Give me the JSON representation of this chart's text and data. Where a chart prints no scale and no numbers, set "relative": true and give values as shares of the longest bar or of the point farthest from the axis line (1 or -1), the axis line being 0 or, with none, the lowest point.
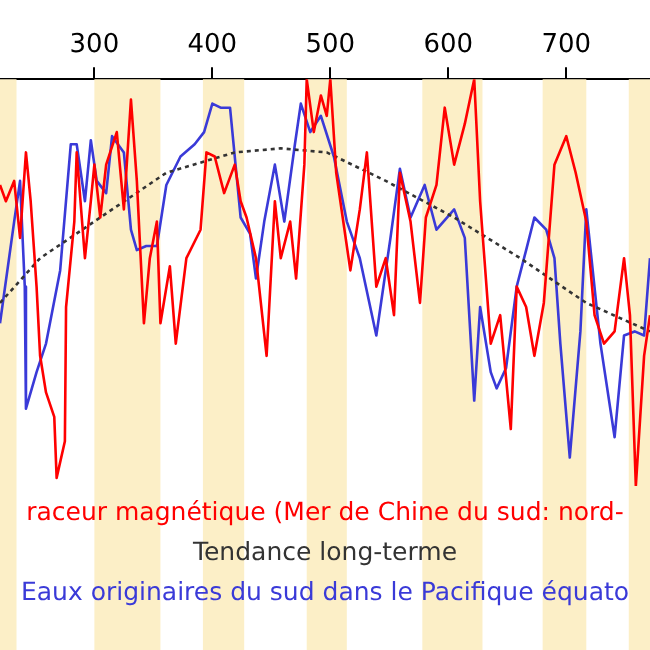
{
  "chart_data": {
    "type": "line",
    "relative": true,
    "xlim": [
      220,
      771
    ],
    "xticks": [
      300,
      400,
      500,
      600,
      700
    ],
    "grid": false,
    "legend": "bottom",
    "marker": "none",
    "tick_labels": "x",
    "bands": [
      {
        "axis": "x",
        "from": 220,
        "to": 234,
        "color": "#fcefc7"
      },
      {
        "axis": "x",
        "from": 300,
        "to": 356,
        "color": "#fcefc7"
      },
      {
        "axis": "x",
        "from": 392,
        "to": 427,
        "color": "#fcefc7"
      },
      {
        "axis": "x",
        "from": 480,
        "to": 514,
        "color": "#fcefc7"
      },
      {
        "axis": "x",
        "from": 578,
        "to": 629,
        "color": "#fcefc7"
      },
      {
        "axis": "x",
        "from": 680,
        "to": 717,
        "color": "#fcefc7"
      },
      {
        "axis": "x",
        "from": 753,
        "to": 771,
        "color": "#fcefc7"
      }
    ],
    "series": [
      {
        "name": "raceur magnétique (Mer de Chine du sud: nord-",
        "color": "#ff0000",
        "line_style": "solid",
        "x": [
          220,
          225,
          232,
          237,
          242,
          246,
          251,
          254,
          259,
          266,
          268,
          275,
          276,
          283,
          285,
          292,
          297,
          300,
          305,
          310,
          319,
          325,
          331,
          336,
          342,
          347,
          353,
          356,
          364,
          369,
          378,
          390,
          395,
          402,
          410,
          419,
          424,
          429,
          437,
          446,
          453,
          458,
          466,
          471,
          478,
          480,
          486,
          492,
          497,
          500,
          505,
          517,
          525,
          531,
          539,
          547,
          554,
          559,
          568,
          576,
          581,
          590,
          597,
          605,
          614,
          622,
          627,
          636,
          644,
          653,
          658,
          666,
          673,
          681,
          690,
          700,
          708,
          717,
          724,
          732,
          741,
          749,
          754,
          759,
          766,
          771
        ],
        "values": [
          0.74,
          0.7,
          0.75,
          0.61,
          0.82,
          0.7,
          0.49,
          0.32,
          0.23,
          0.17,
          0.02,
          0.11,
          0.44,
          0.65,
          0.82,
          0.56,
          0.7,
          0.79,
          0.66,
          0.79,
          0.87,
          0.68,
          0.95,
          0.75,
          0.4,
          0.56,
          0.65,
          0.4,
          0.54,
          0.35,
          0.56,
          0.63,
          0.82,
          0.81,
          0.72,
          0.79,
          0.7,
          0.66,
          0.56,
          0.32,
          0.7,
          0.56,
          0.65,
          0.51,
          0.79,
          1,
          0.87,
          0.96,
          0.91,
          1,
          0.77,
          0.53,
          0.68,
          0.82,
          0.49,
          0.56,
          0.42,
          0.77,
          0.65,
          0.45,
          0.66,
          0.74,
          0.93,
          0.79,
          0.89,
          1,
          0.7,
          0.35,
          0.42,
          0.14,
          0.49,
          0.44,
          0.32,
          0.45,
          0.79,
          0.86,
          0.77,
          0.65,
          0.42,
          0.35,
          0.38,
          0.56,
          0.42,
          0,
          0.32,
          0.42
        ]
      },
      {
        "name": "Tendance long-terme",
        "color": "#333333",
        "line_style": "dotted",
        "x": [
          220,
          254,
          305,
          361,
          419,
          458,
          497,
          547,
          605,
          661,
          717,
          771
        ],
        "values": [
          0.45,
          0.56,
          0.66,
          0.77,
          0.82,
          0.83,
          0.82,
          0.75,
          0.66,
          0.56,
          0.45,
          0.38
        ]
      },
      {
        "name": "Eaux originaires du sud dans le Pacifique équato",
        "color": "#3a3ad8",
        "line_style": "solid",
        "x": [
          220,
          232,
          237,
          241,
          242,
          251,
          259,
          271,
          280,
          285,
          292,
          297,
          302,
          310,
          315,
          325,
          331,
          336,
          344,
          353,
          361,
          373,
          385,
          393,
          400,
          407,
          415,
          424,
          432,
          437,
          444,
          453,
          461,
          470,
          475,
          483,
          492,
          503,
          514,
          525,
          539,
          551,
          559,
          568,
          580,
          590,
          605,
          614,
          622,
          627,
          636,
          641,
          649,
          658,
          666,
          673,
          683,
          690,
          695,
          703,
          712,
          717,
          729,
          741,
          749,
          758,
          766,
          771
        ],
        "values": [
          0.4,
          0.65,
          0.75,
          0.49,
          0.19,
          0.28,
          0.35,
          0.53,
          0.84,
          0.84,
          0.7,
          0.85,
          0.75,
          0.72,
          0.86,
          0.82,
          0.63,
          0.58,
          0.59,
          0.59,
          0.74,
          0.81,
          0.84,
          0.87,
          0.94,
          0.93,
          0.93,
          0.66,
          0.62,
          0.51,
          0.65,
          0.79,
          0.65,
          0.84,
          0.94,
          0.87,
          0.91,
          0.81,
          0.65,
          0.56,
          0.37,
          0.61,
          0.78,
          0.66,
          0.74,
          0.63,
          0.68,
          0.61,
          0.21,
          0.44,
          0.28,
          0.24,
          0.29,
          0.49,
          0.58,
          0.66,
          0.63,
          0.56,
          0.35,
          0.07,
          0.38,
          0.68,
          0.35,
          0.12,
          0.37,
          0.38,
          0.37,
          0.56
        ]
      }
    ]
  }
}
